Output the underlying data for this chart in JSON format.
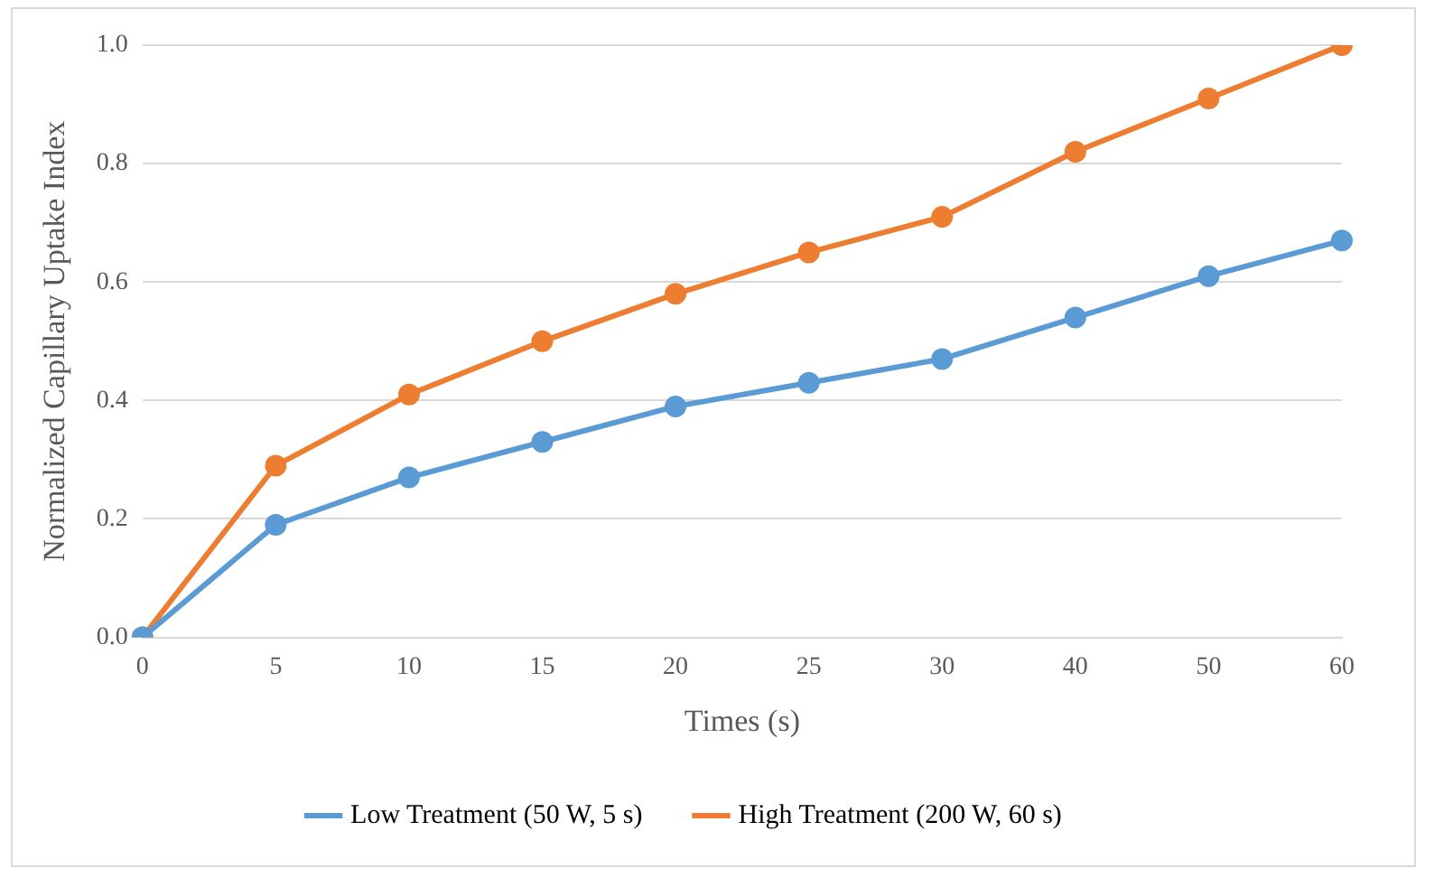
{
  "chart_data": {
    "type": "line",
    "xlabel": "Times (s)",
    "ylabel": "Normalized Capillary Uptake Index",
    "categories": [
      "0",
      "5",
      "10",
      "15",
      "20",
      "25",
      "30",
      "40",
      "50",
      "60"
    ],
    "series": [
      {
        "name": "Low Treatment (50 W, 5 s)",
        "color": "#5b9bd5",
        "values": [
          0,
          0.19,
          0.27,
          0.33,
          0.39,
          0.43,
          0.47,
          0.54,
          0.61,
          0.67
        ]
      },
      {
        "name": "High Treatment (200 W, 60 s)",
        "color": "#ed7d31",
        "values": [
          0,
          0.29,
          0.41,
          0.5,
          0.58,
          0.65,
          0.71,
          0.82,
          0.91,
          1.0
        ]
      }
    ],
    "ylim": [
      0,
      1.0
    ],
    "yticks": [
      {
        "value": 0,
        "label": "0.0"
      },
      {
        "value": 0.2,
        "label": "0.2"
      },
      {
        "value": 0.4,
        "label": "0.4"
      },
      {
        "value": 0.6,
        "label": "0.6"
      },
      {
        "value": 0.8,
        "label": "0.8"
      },
      {
        "value": 1.0,
        "label": "1.0"
      }
    ],
    "grid": "y",
    "legend": "bottom",
    "marker": "circle",
    "line_style": "solid"
  }
}
